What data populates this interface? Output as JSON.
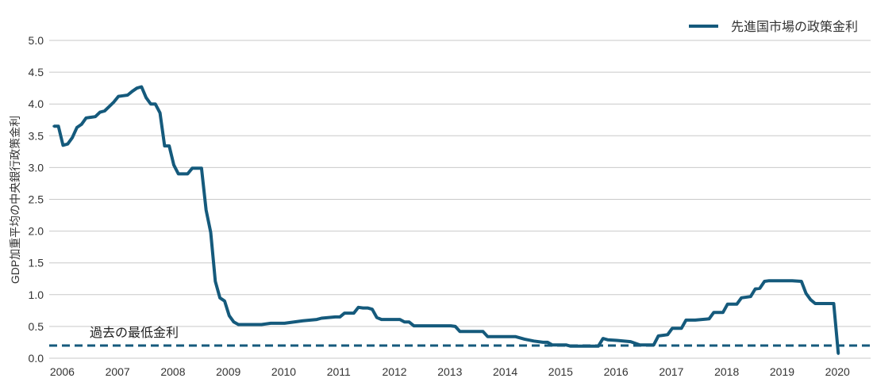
{
  "chart_data": {
    "type": "line",
    "ylabel": "GDP加重平均の中央銀行政策金利",
    "ylim": [
      0,
      5
    ],
    "xlim": [
      "2005-12",
      "2020-10"
    ],
    "grid": true,
    "legend": {
      "position": "top-right"
    },
    "ytick_labels": [
      "0.0",
      "0.5",
      "1.0",
      "1.5",
      "2.0",
      "2.5",
      "3.0",
      "3.5",
      "4.0",
      "4.5",
      "5.0"
    ],
    "xtick_labels": [
      "2006",
      "2007",
      "2008",
      "2009",
      "2010",
      "2011",
      "2012",
      "2013",
      "2014",
      "2015",
      "2016",
      "2017",
      "2018",
      "2019",
      "2020"
    ],
    "series": [
      {
        "name": "先進国市場の政策金利",
        "color": "#155a7c",
        "x": [
          "2006-01",
          "2006-02",
          "2006-03",
          "2006-04",
          "2006-05",
          "2006-06",
          "2006-07",
          "2006-08",
          "2006-09",
          "2006-10",
          "2006-11",
          "2006-12",
          "2007-01",
          "2007-02",
          "2007-03",
          "2007-04",
          "2007-05",
          "2007-06",
          "2007-07",
          "2007-08",
          "2007-09",
          "2007-10",
          "2007-11",
          "2007-12",
          "2008-01",
          "2008-02",
          "2008-03",
          "2008-04",
          "2008-05",
          "2008-06",
          "2008-07",
          "2008-08",
          "2008-09",
          "2008-10",
          "2008-11",
          "2008-12",
          "2009-01",
          "2009-02",
          "2009-03",
          "2009-04",
          "2009-05",
          "2009-10",
          "2009-12",
          "2010-03",
          "2010-07",
          "2010-10",
          "2010-11",
          "2011-02",
          "2011-03",
          "2011-04",
          "2011-06",
          "2011-07",
          "2011-08",
          "2011-09",
          "2011-10",
          "2011-11",
          "2011-12",
          "2012-04",
          "2012-05",
          "2012-06",
          "2012-07",
          "2013-03",
          "2013-04",
          "2013-05",
          "2013-10",
          "2013-11",
          "2014-05",
          "2014-07",
          "2014-09",
          "2014-11",
          "2014-12",
          "2015-01",
          "2015-04",
          "2015-05",
          "2015-11",
          "2015-12",
          "2016-01",
          "2016-03",
          "2016-06",
          "2016-08",
          "2016-11",
          "2016-12",
          "2017-02",
          "2017-03",
          "2017-05",
          "2017-06",
          "2017-08",
          "2017-11",
          "2017-12",
          "2018-02",
          "2018-03",
          "2018-05",
          "2018-06",
          "2018-08",
          "2018-09",
          "2018-10",
          "2018-11",
          "2018-12",
          "2019-05",
          "2019-07",
          "2019-08",
          "2019-09",
          "2019-10",
          "2020-02",
          "2020-03"
        ],
        "y": [
          3.65,
          3.65,
          3.35,
          3.37,
          3.47,
          3.63,
          3.68,
          3.78,
          3.79,
          3.8,
          3.87,
          3.89,
          3.96,
          4.03,
          4.12,
          4.13,
          4.14,
          4.2,
          4.25,
          4.27,
          4.1,
          4.0,
          4.0,
          3.86,
          3.34,
          3.34,
          3.04,
          2.9,
          2.9,
          2.9,
          2.99,
          2.99,
          2.99,
          2.33,
          1.98,
          1.21,
          0.95,
          0.9,
          0.67,
          0.57,
          0.53,
          0.53,
          0.55,
          0.55,
          0.59,
          0.61,
          0.63,
          0.65,
          0.65,
          0.71,
          0.71,
          0.8,
          0.79,
          0.79,
          0.77,
          0.64,
          0.61,
          0.61,
          0.57,
          0.57,
          0.51,
          0.51,
          0.5,
          0.42,
          0.42,
          0.34,
          0.34,
          0.3,
          0.27,
          0.25,
          0.25,
          0.21,
          0.21,
          0.19,
          0.19,
          0.31,
          0.29,
          0.28,
          0.26,
          0.21,
          0.21,
          0.35,
          0.37,
          0.47,
          0.47,
          0.6,
          0.6,
          0.62,
          0.72,
          0.72,
          0.85,
          0.85,
          0.95,
          0.97,
          1.09,
          1.1,
          1.21,
          1.22,
          1.22,
          1.21,
          1.02,
          0.92,
          0.86,
          0.86,
          0.07
        ]
      }
    ],
    "reference_lines": [
      {
        "y": 0.2,
        "label": "過去の最低金利",
        "color": "#155a7c"
      }
    ]
  }
}
